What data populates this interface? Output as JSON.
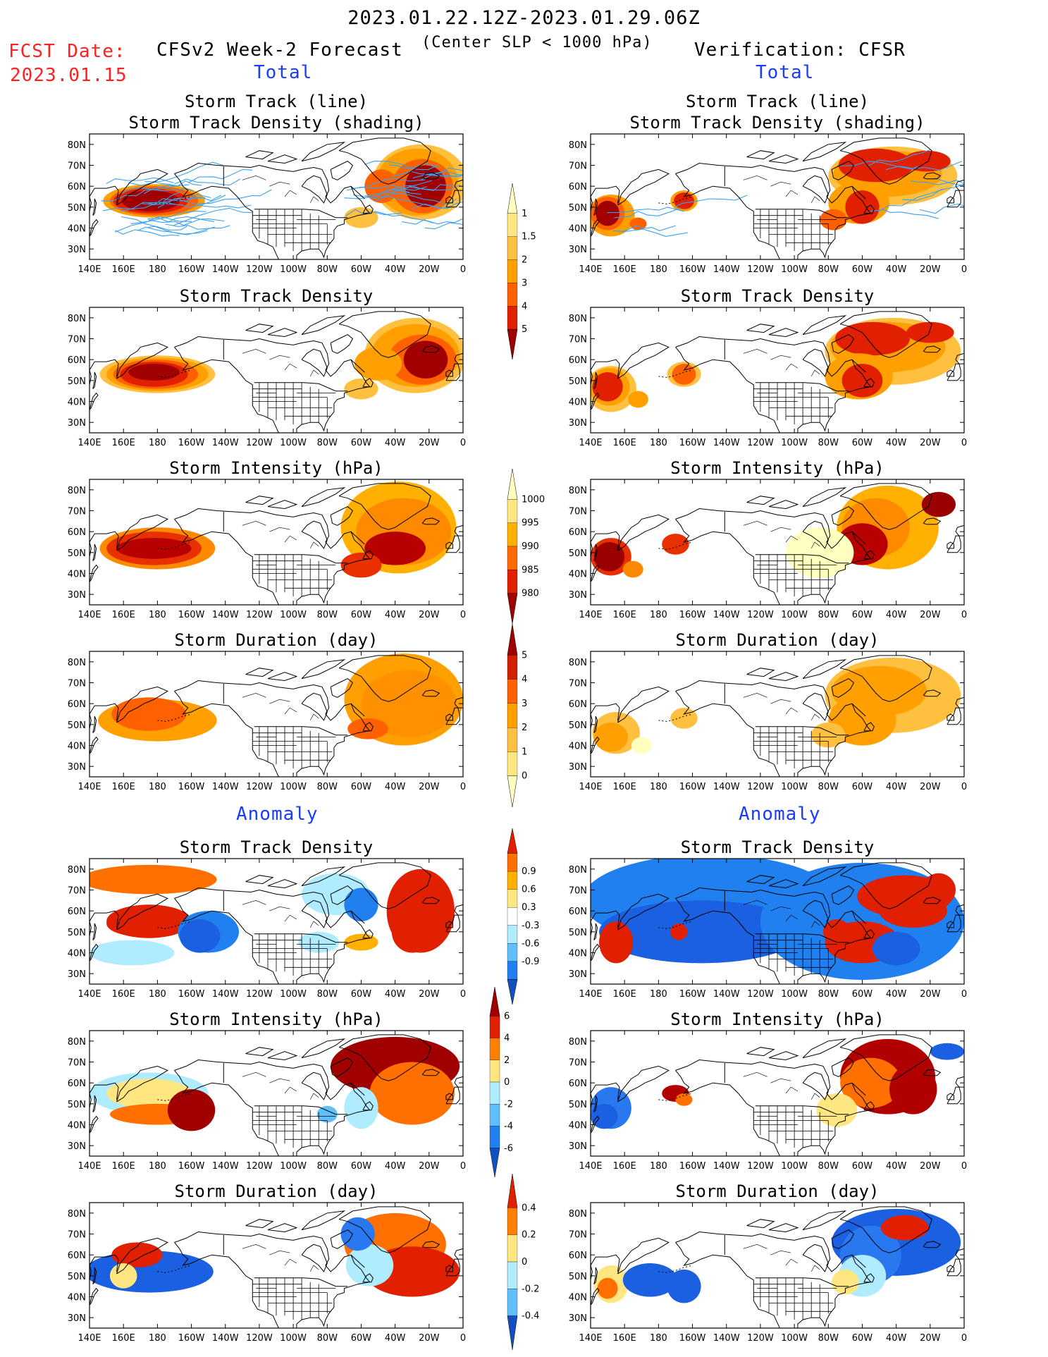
{
  "header": {
    "date_range": "2023.01.22.12Z-2023.01.29.06Z",
    "criterion": "(Center SLP < 1000 hPa)",
    "fcst_label": "FCST Date:",
    "fcst_date": "2023.01.15",
    "left_title": "CFSv2 Week-2 Forecast",
    "right_title": "Verification: CFSR",
    "total_label": "Total",
    "anomaly_label": "Anomaly"
  },
  "axes": {
    "lon_labels": [
      "140E",
      "160E",
      "180",
      "160W",
      "140W",
      "120W",
      "100W",
      "80W",
      "60W",
      "40W",
      "20W",
      "0"
    ],
    "lat_labels": [
      "80N",
      "70N",
      "60N",
      "50N",
      "40N",
      "30N"
    ]
  },
  "panels": [
    {
      "id": "fcst-track",
      "title_lines": [
        "Storm Track (line)",
        "Storm Track Density (shading)"
      ]
    },
    {
      "id": "obs-track",
      "title_lines": [
        "Storm Track (line)",
        "Storm Track Density (shading)"
      ]
    },
    {
      "id": "fcst-density",
      "title_lines": [
        "Storm Track Density"
      ]
    },
    {
      "id": "obs-density",
      "title_lines": [
        "Storm Track Density"
      ]
    },
    {
      "id": "fcst-intensity",
      "title_lines": [
        "Storm Intensity (hPa)"
      ]
    },
    {
      "id": "obs-intensity",
      "title_lines": [
        "Storm Intensity (hPa)"
      ]
    },
    {
      "id": "fcst-duration",
      "title_lines": [
        "Storm Duration (day)"
      ]
    },
    {
      "id": "obs-duration",
      "title_lines": [
        "Storm Duration (day)"
      ]
    },
    {
      "id": "fcst-density-anom",
      "title_lines": [
        "Storm Track Density"
      ]
    },
    {
      "id": "obs-density-anom",
      "title_lines": [
        "Storm Track Density"
      ]
    },
    {
      "id": "fcst-intensity-anom",
      "title_lines": [
        "Storm Intensity (hPa)"
      ]
    },
    {
      "id": "obs-intensity-anom",
      "title_lines": [
        "Storm Intensity (hPa)"
      ]
    },
    {
      "id": "fcst-duration-anom",
      "title_lines": [
        "Storm Duration (day)"
      ]
    },
    {
      "id": "obs-duration-anom",
      "title_lines": [
        "Storm Duration (day)"
      ]
    }
  ],
  "colorbars": [
    {
      "id": "density",
      "labels": [
        "1",
        "1.5",
        "2",
        "3",
        "4",
        "5"
      ],
      "colors": [
        "#ffffc0",
        "#ffe680",
        "#ffc040",
        "#ffa000",
        "#ff6000",
        "#e02000",
        "#a00000"
      ]
    },
    {
      "id": "intensity",
      "labels": [
        "1000",
        "995",
        "990",
        "985",
        "980"
      ],
      "colors": [
        "#ffffc0",
        "#ffe680",
        "#ffb000",
        "#ff6a00",
        "#e02000",
        "#a00000"
      ]
    },
    {
      "id": "duration",
      "labels": [
        "5",
        "4",
        "3",
        "2",
        "1",
        "0"
      ],
      "colors": [
        "#a00000",
        "#d02000",
        "#ff6000",
        "#ffa000",
        "#ffc040",
        "#ffe680",
        "#ffffc0"
      ]
    },
    {
      "id": "density-anom",
      "labels": [
        "0.9",
        "0.6",
        "0.3",
        "-0.3",
        "-0.6",
        "-0.9"
      ],
      "colors": [
        "#e02000",
        "#ff7000",
        "#ffb000",
        "#ffe680",
        "#ffffff",
        "#b0ecff",
        "#60c0ff",
        "#2080f0",
        "#1050c0"
      ]
    },
    {
      "id": "intensity-anom",
      "labels": [
        "6",
        "4",
        "2",
        "0",
        "-2",
        "-4",
        "-6"
      ],
      "colors": [
        "#a00000",
        "#e02000",
        "#ff8000",
        "#ffe680",
        "#b0ecff",
        "#60c0ff",
        "#2080f0",
        "#1050c0"
      ]
    },
    {
      "id": "duration-anom",
      "labels": [
        "0.4",
        "0.2",
        "0",
        "-0.2",
        "-0.4"
      ],
      "colors": [
        "#e02000",
        "#ff8000",
        "#ffe680",
        "#b0ecff",
        "#60c0ff",
        "#1050c0"
      ]
    }
  ],
  "colors": {
    "storm_track_line": "#3aa0f0",
    "title_red": "#ff2020",
    "title_blue": "#1a3cff"
  }
}
